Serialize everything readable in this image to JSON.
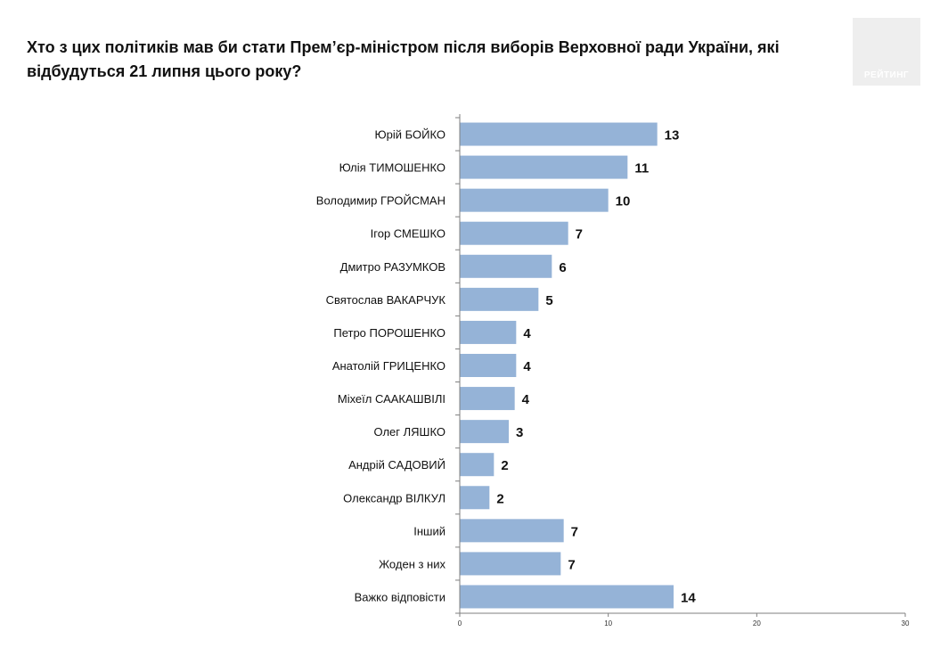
{
  "chart_data": {
    "type": "bar",
    "orientation": "horizontal",
    "title": "Хто з цих політиків мав би стати Прем’єр-міністром після виборів Верховної ради України, які відбудуться 21 липня цього року?",
    "categories": [
      "Юрій БОЙКО",
      "Юлія ТИМОШЕНКО",
      "Володимир ГРОЙСМАН",
      "Ігор СМЕШКО",
      "Дмитро РАЗУМКОВ",
      "Святослав ВАКАРЧУК",
      "Петро ПОРОШЕНКО",
      "Анатолій ГРИЦЕНКО",
      "Міхеїл СААКАШВІЛІ",
      "Олег ЛЯШКО",
      "Андрій САДОВИЙ",
      "Олександр ВІЛКУЛ",
      "Інший",
      "Жоден з них",
      "Важко відповісти"
    ],
    "values": [
      13.3,
      11.3,
      10.0,
      7.3,
      6.2,
      5.3,
      3.8,
      3.8,
      3.7,
      3.3,
      2.3,
      2.0,
      7.0,
      6.8,
      14.4
    ],
    "value_labels": [
      "13",
      "11",
      "10",
      "7",
      "6",
      "5",
      "4",
      "4",
      "4",
      "3",
      "2",
      "2",
      "7",
      "7",
      "14"
    ],
    "xlim": [
      0,
      30
    ],
    "x_ticks": [
      "0",
      "10",
      "20",
      "30"
    ],
    "xlabel": "",
    "ylabel": "",
    "grid": false,
    "bar_color": "#95b3d7",
    "legend": "none"
  },
  "logo": {
    "text": "РЕЙТИНГ",
    "color": "#eeeeee"
  }
}
